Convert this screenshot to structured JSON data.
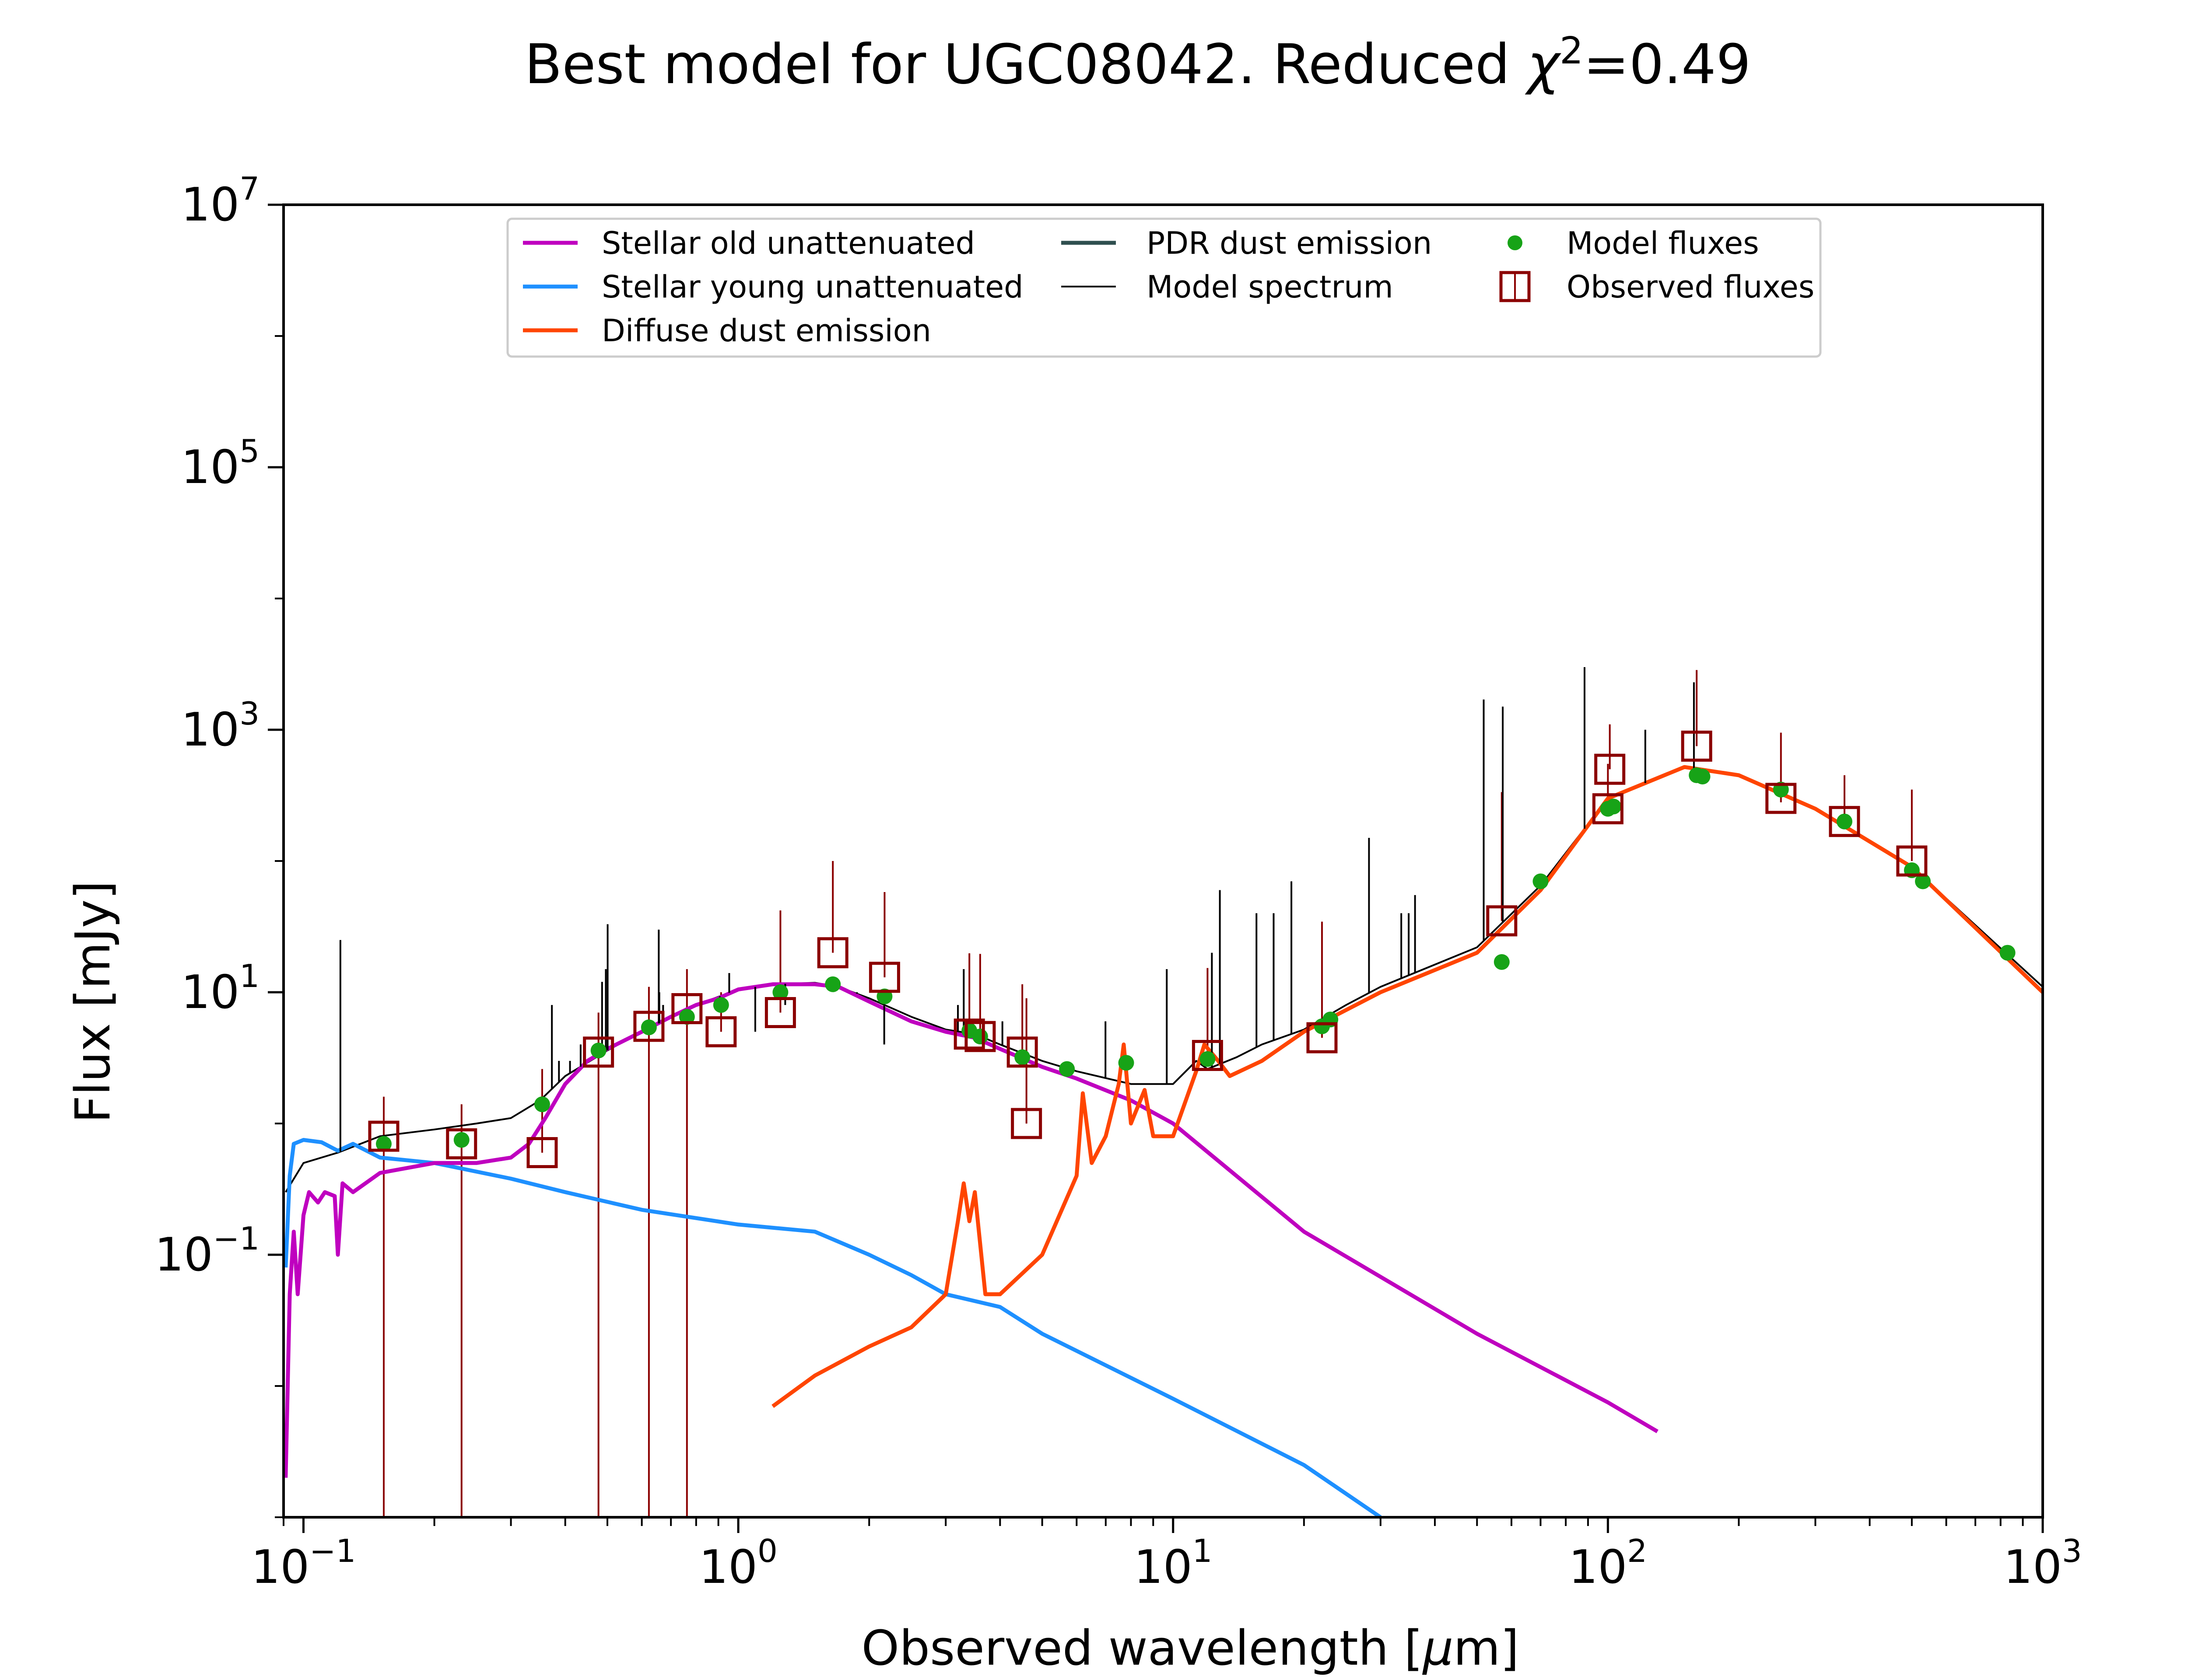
{
  "chart_data": {
    "type": "line",
    "title": "Best model for UGC08042. Reduced χ²=0.49",
    "title_main": "Best model for UGC08042. Reduced ",
    "title_chi": "χ",
    "title_sup": "2",
    "title_tail": "=0.49",
    "xlabel": "Observed wavelength [μm]",
    "xlabel_pre": "Observed wavelength [",
    "xlabel_mu": "μ",
    "xlabel_post": "m]",
    "ylabel": "Flux [mJy]",
    "xscale": "log",
    "yscale": "log",
    "xlim": [
      0.09,
      1000
    ],
    "ylim": [
      0.001,
      10000000
    ],
    "x_ticks": [
      {
        "value": 0.1,
        "base": "10",
        "exp": "−1"
      },
      {
        "value": 1,
        "base": "10",
        "exp": "0"
      },
      {
        "value": 10,
        "base": "10",
        "exp": "1"
      },
      {
        "value": 100,
        "base": "10",
        "exp": "2"
      },
      {
        "value": 1000,
        "base": "10",
        "exp": "3"
      }
    ],
    "y_ticks": [
      {
        "value": 0.1,
        "base": "10",
        "exp": "−1"
      },
      {
        "value": 10,
        "base": "10",
        "exp": "1"
      },
      {
        "value": 1000,
        "base": "10",
        "exp": "3"
      },
      {
        "value": 100000,
        "base": "10",
        "exp": "5"
      },
      {
        "value": 10000000,
        "base": "10",
        "exp": "7"
      }
    ],
    "grid": false,
    "legend_position": "top-center",
    "colors": {
      "stellar_old": "#bf00bf",
      "stellar_young": "#1e90ff",
      "diffuse_dust": "#ff4500",
      "pdr_dust": "#2f4f4f",
      "model_spectrum": "#000000",
      "model_fluxes": "#17a317",
      "observed_fluxes": "#8b0000"
    },
    "legend": [
      {
        "label": "Stellar old unattenuated",
        "kind": "line",
        "color": "#bf00bf"
      },
      {
        "label": "Stellar young unattenuated",
        "kind": "line",
        "color": "#1e90ff"
      },
      {
        "label": "Diffuse dust emission",
        "kind": "line",
        "color": "#ff4500"
      },
      {
        "label": "PDR dust emission",
        "kind": "line",
        "color": "#2f4f4f"
      },
      {
        "label": "Model spectrum",
        "kind": "thinline",
        "color": "#000000"
      },
      {
        "label": "Model fluxes",
        "kind": "dot",
        "color": "#17a317"
      },
      {
        "label": "Observed fluxes",
        "kind": "square",
        "color": "#8b0000"
      }
    ],
    "series": [
      {
        "name": "Stellar old unattenuated",
        "color": "#bf00bf",
        "x": [
          0.091,
          0.093,
          0.095,
          0.097,
          0.1,
          0.103,
          0.108,
          0.112,
          0.118,
          0.12,
          0.123,
          0.13,
          0.15,
          0.2,
          0.25,
          0.3,
          0.33,
          0.36,
          0.4,
          0.45,
          0.5,
          0.6,
          0.7,
          0.8,
          0.9,
          1.0,
          1.2,
          1.5,
          1.7,
          2.0,
          2.5,
          3.0,
          3.5,
          4.0,
          5.0,
          6.0,
          8.0,
          10,
          20,
          50,
          100,
          130
        ],
        "y": [
          0.002,
          0.05,
          0.15,
          0.05,
          0.2,
          0.3,
          0.25,
          0.3,
          0.28,
          0.1,
          0.35,
          0.3,
          0.42,
          0.5,
          0.5,
          0.55,
          0.7,
          1.1,
          2.0,
          3.0,
          3.7,
          5.0,
          6.5,
          8.0,
          9.0,
          10.5,
          11.5,
          11.5,
          11.0,
          8.5,
          6.0,
          5.0,
          4.5,
          3.7,
          2.7,
          2.2,
          1.5,
          1.0,
          0.15,
          0.025,
          0.0075,
          0.0045
        ]
      },
      {
        "name": "Stellar young unattenuated",
        "color": "#1e90ff",
        "x": [
          0.091,
          0.093,
          0.095,
          0.1,
          0.11,
          0.12,
          0.13,
          0.15,
          0.2,
          0.3,
          0.4,
          0.6,
          1.0,
          1.5,
          2.0,
          2.5,
          3.0,
          4.0,
          5.0,
          10,
          20,
          30
        ],
        "y": [
          0.08,
          0.4,
          0.7,
          0.75,
          0.72,
          0.62,
          0.7,
          0.55,
          0.5,
          0.38,
          0.3,
          0.22,
          0.17,
          0.15,
          0.1,
          0.07,
          0.05,
          0.04,
          0.025,
          0.008,
          0.0025,
          0.001
        ]
      },
      {
        "name": "Diffuse dust emission",
        "color": "#ff4500",
        "x": [
          1.2,
          1.5,
          2.0,
          2.5,
          3.0,
          3.2,
          3.3,
          3.4,
          3.5,
          3.7,
          4.0,
          5.0,
          6.0,
          6.2,
          6.5,
          7.0,
          7.5,
          7.7,
          8.0,
          8.6,
          9.0,
          10.0,
          11.3,
          11.8,
          12.7,
          13.5,
          16,
          20,
          30,
          50,
          70,
          100,
          150,
          200,
          300,
          500,
          1000
        ],
        "y": [
          0.007,
          0.012,
          0.02,
          0.028,
          0.05,
          0.18,
          0.35,
          0.18,
          0.3,
          0.05,
          0.05,
          0.1,
          0.4,
          1.7,
          0.5,
          0.8,
          2.0,
          4.0,
          1.0,
          1.8,
          0.8,
          0.8,
          2.5,
          4.0,
          3.0,
          2.3,
          3.0,
          5.0,
          10,
          20,
          60,
          300,
          520,
          450,
          250,
          90,
          10
        ]
      },
      {
        "name": "Model spectrum",
        "color": "#000000",
        "x": [
          0.091,
          0.1,
          0.12,
          0.15,
          0.2,
          0.25,
          0.3,
          0.35,
          0.4,
          0.5,
          0.6,
          0.8,
          1.0,
          1.2,
          1.5,
          1.7,
          2.0,
          2.5,
          3.0,
          3.5,
          4.0,
          5.0,
          6.0,
          8.0,
          10,
          11.3,
          12,
          14,
          16,
          20,
          25,
          30,
          50,
          70,
          100,
          150,
          200,
          300,
          500,
          1000
        ],
        "y": [
          0.3,
          0.5,
          0.6,
          0.8,
          0.9,
          1.0,
          1.1,
          1.5,
          2.3,
          3.6,
          5.0,
          8.0,
          10.5,
          11.5,
          11.8,
          11.0,
          9.0,
          6.5,
          5.2,
          4.8,
          4.0,
          3.0,
          2.5,
          2.0,
          2.0,
          3.0,
          2.6,
          3.2,
          4.0,
          5.2,
          8.0,
          11,
          22,
          65,
          300,
          520,
          450,
          250,
          90,
          11
        ]
      },
      {
        "name": "Spectrum emission lines",
        "color": "#000000",
        "x": [
          0.1216,
          0.3727,
          0.3869,
          0.4102,
          0.434,
          0.4861,
          0.4959,
          0.5007,
          0.6563,
          0.6583,
          0.6717,
          0.9069,
          0.9532,
          1.0941,
          1.2822,
          1.8751,
          2.1661,
          3.2,
          3.3,
          4.05,
          6.99,
          9.67,
          12.28,
          12.81,
          15.55,
          17.03,
          18.71,
          28.22,
          33.48,
          34.82,
          36.01,
          51.8,
          57.3,
          88.36,
          121.9,
          157.7
        ],
        "y": [
          25,
          8,
          3,
          3,
          4,
          12,
          15,
          33,
          30,
          10,
          8,
          9,
          14,
          5,
          8,
          10,
          4,
          8,
          15,
          6,
          6,
          15,
          20,
          60,
          40,
          40,
          70,
          150,
          40,
          40,
          55,
          1700,
          1500,
          3000,
          1000,
          2300
        ]
      }
    ],
    "model_fluxes": {
      "x": [
        0.153,
        0.231,
        0.354,
        0.477,
        0.623,
        0.762,
        0.913,
        1.25,
        1.65,
        2.17,
        3.4,
        3.6,
        4.5,
        5.7,
        7.8,
        12,
        22,
        23,
        57,
        70,
        100,
        103,
        160,
        165,
        250,
        350,
        500,
        530,
        830
      ],
      "y": [
        0.7,
        0.75,
        1.4,
        3.6,
        5.4,
        6.5,
        8.0,
        10.0,
        11.5,
        9.3,
        5.1,
        4.6,
        3.2,
        2.6,
        2.9,
        3.1,
        5.5,
        6.2,
        17,
        70,
        250,
        260,
        450,
        440,
        350,
        200,
        85,
        70,
        20
      ]
    },
    "observed_fluxes": {
      "x": [
        0.153,
        0.231,
        0.354,
        0.477,
        0.623,
        0.762,
        0.913,
        1.25,
        1.65,
        2.17,
        3.4,
        3.6,
        4.5,
        4.6,
        12,
        22,
        57,
        100,
        101,
        160,
        250,
        350,
        500
      ],
      "y": [
        0.8,
        0.7,
        0.6,
        3.5,
        5.5,
        7.5,
        5.0,
        7.0,
        20,
        13,
        4.8,
        4.6,
        3.5,
        1.0,
        3.3,
        4.5,
        35,
        250,
        500,
        750,
        300,
        200,
        100
      ],
      "err_lo": [
        0.8,
        0.7,
        0.001,
        3.5,
        5.5,
        7.5,
        0.001,
        0.001,
        0.001,
        0.001,
        0.001,
        0.001,
        0.001,
        0.001,
        0.001,
        0.001,
        0.001,
        0.001,
        0.001,
        0.001,
        20,
        15,
        0.001
      ],
      "err_hi": [
        0.8,
        0.7,
        2.0,
        3.5,
        5.5,
        7.5,
        5.0,
        35,
        80,
        45,
        15,
        15,
        8,
        8,
        12,
        30,
        300,
        300,
        600,
        2100,
        650,
        250,
        250
      ]
    }
  }
}
